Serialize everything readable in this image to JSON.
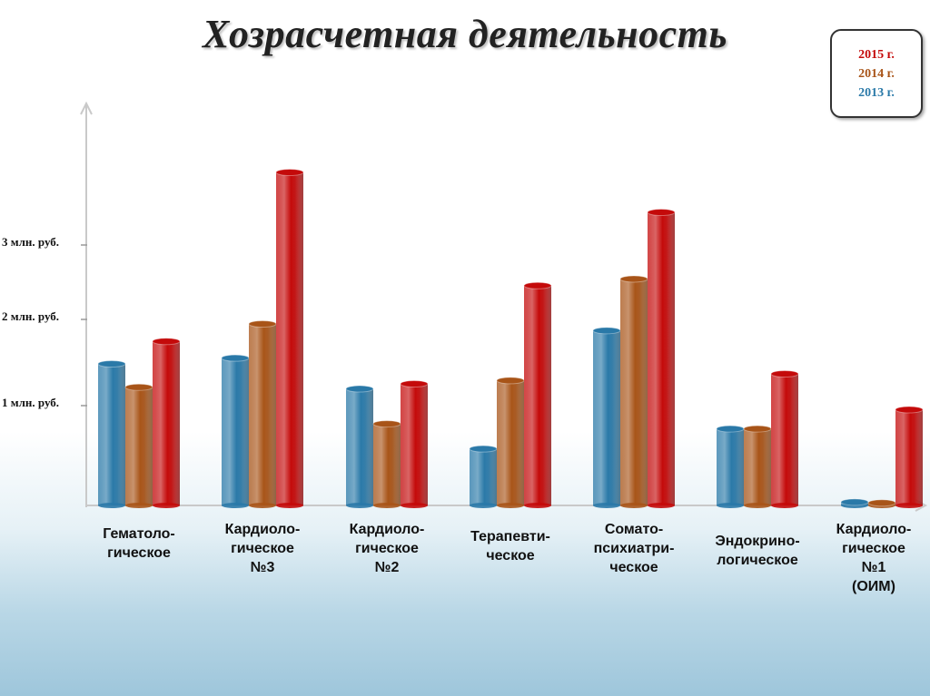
{
  "chart_data": {
    "type": "bar",
    "title": "Хозрасчетная деятельность",
    "categories": [
      [
        "Гематоло-",
        "гическое"
      ],
      [
        "Кардиоло-",
        "гическое",
        "№3"
      ],
      [
        "Кардиоло-",
        "гическое",
        "№2"
      ],
      [
        "Терапевти-",
        "ческое"
      ],
      [
        "Сомато-",
        "психиатри-",
        "ческое"
      ],
      [
        "Эндокрино-",
        "логическое"
      ],
      [
        "Кардиоло-",
        "гическое",
        "№1",
        "(ОИМ)"
      ]
    ],
    "series": [
      {
        "name": "2013 г.",
        "color": "#2a79a8",
        "values": [
          1.7,
          1.77,
          1.4,
          0.68,
          2.1,
          0.92,
          0.04
        ]
      },
      {
        "name": "2014 г.",
        "color": "#a85418",
        "values": [
          1.42,
          2.18,
          0.98,
          1.5,
          2.72,
          0.92,
          0.03
        ]
      },
      {
        "name": "2015 г.",
        "color": "#c40a0a",
        "values": [
          1.97,
          4.0,
          1.46,
          2.64,
          3.52,
          1.58,
          1.15
        ]
      }
    ],
    "legend_order": [
      "2015 г.",
      "2014 г.",
      "2013 г."
    ],
    "legend_position": "top-right",
    "y_ticks": [
      {
        "value": 1,
        "label": "1 млн. руб."
      },
      {
        "value": 2,
        "label": "2 млн. руб."
      },
      {
        "value": 3,
        "label": "3 млн. руб."
      }
    ],
    "ylim": [
      0,
      5.2
    ],
    "xlabel": "",
    "ylabel": "",
    "grid": false
  }
}
